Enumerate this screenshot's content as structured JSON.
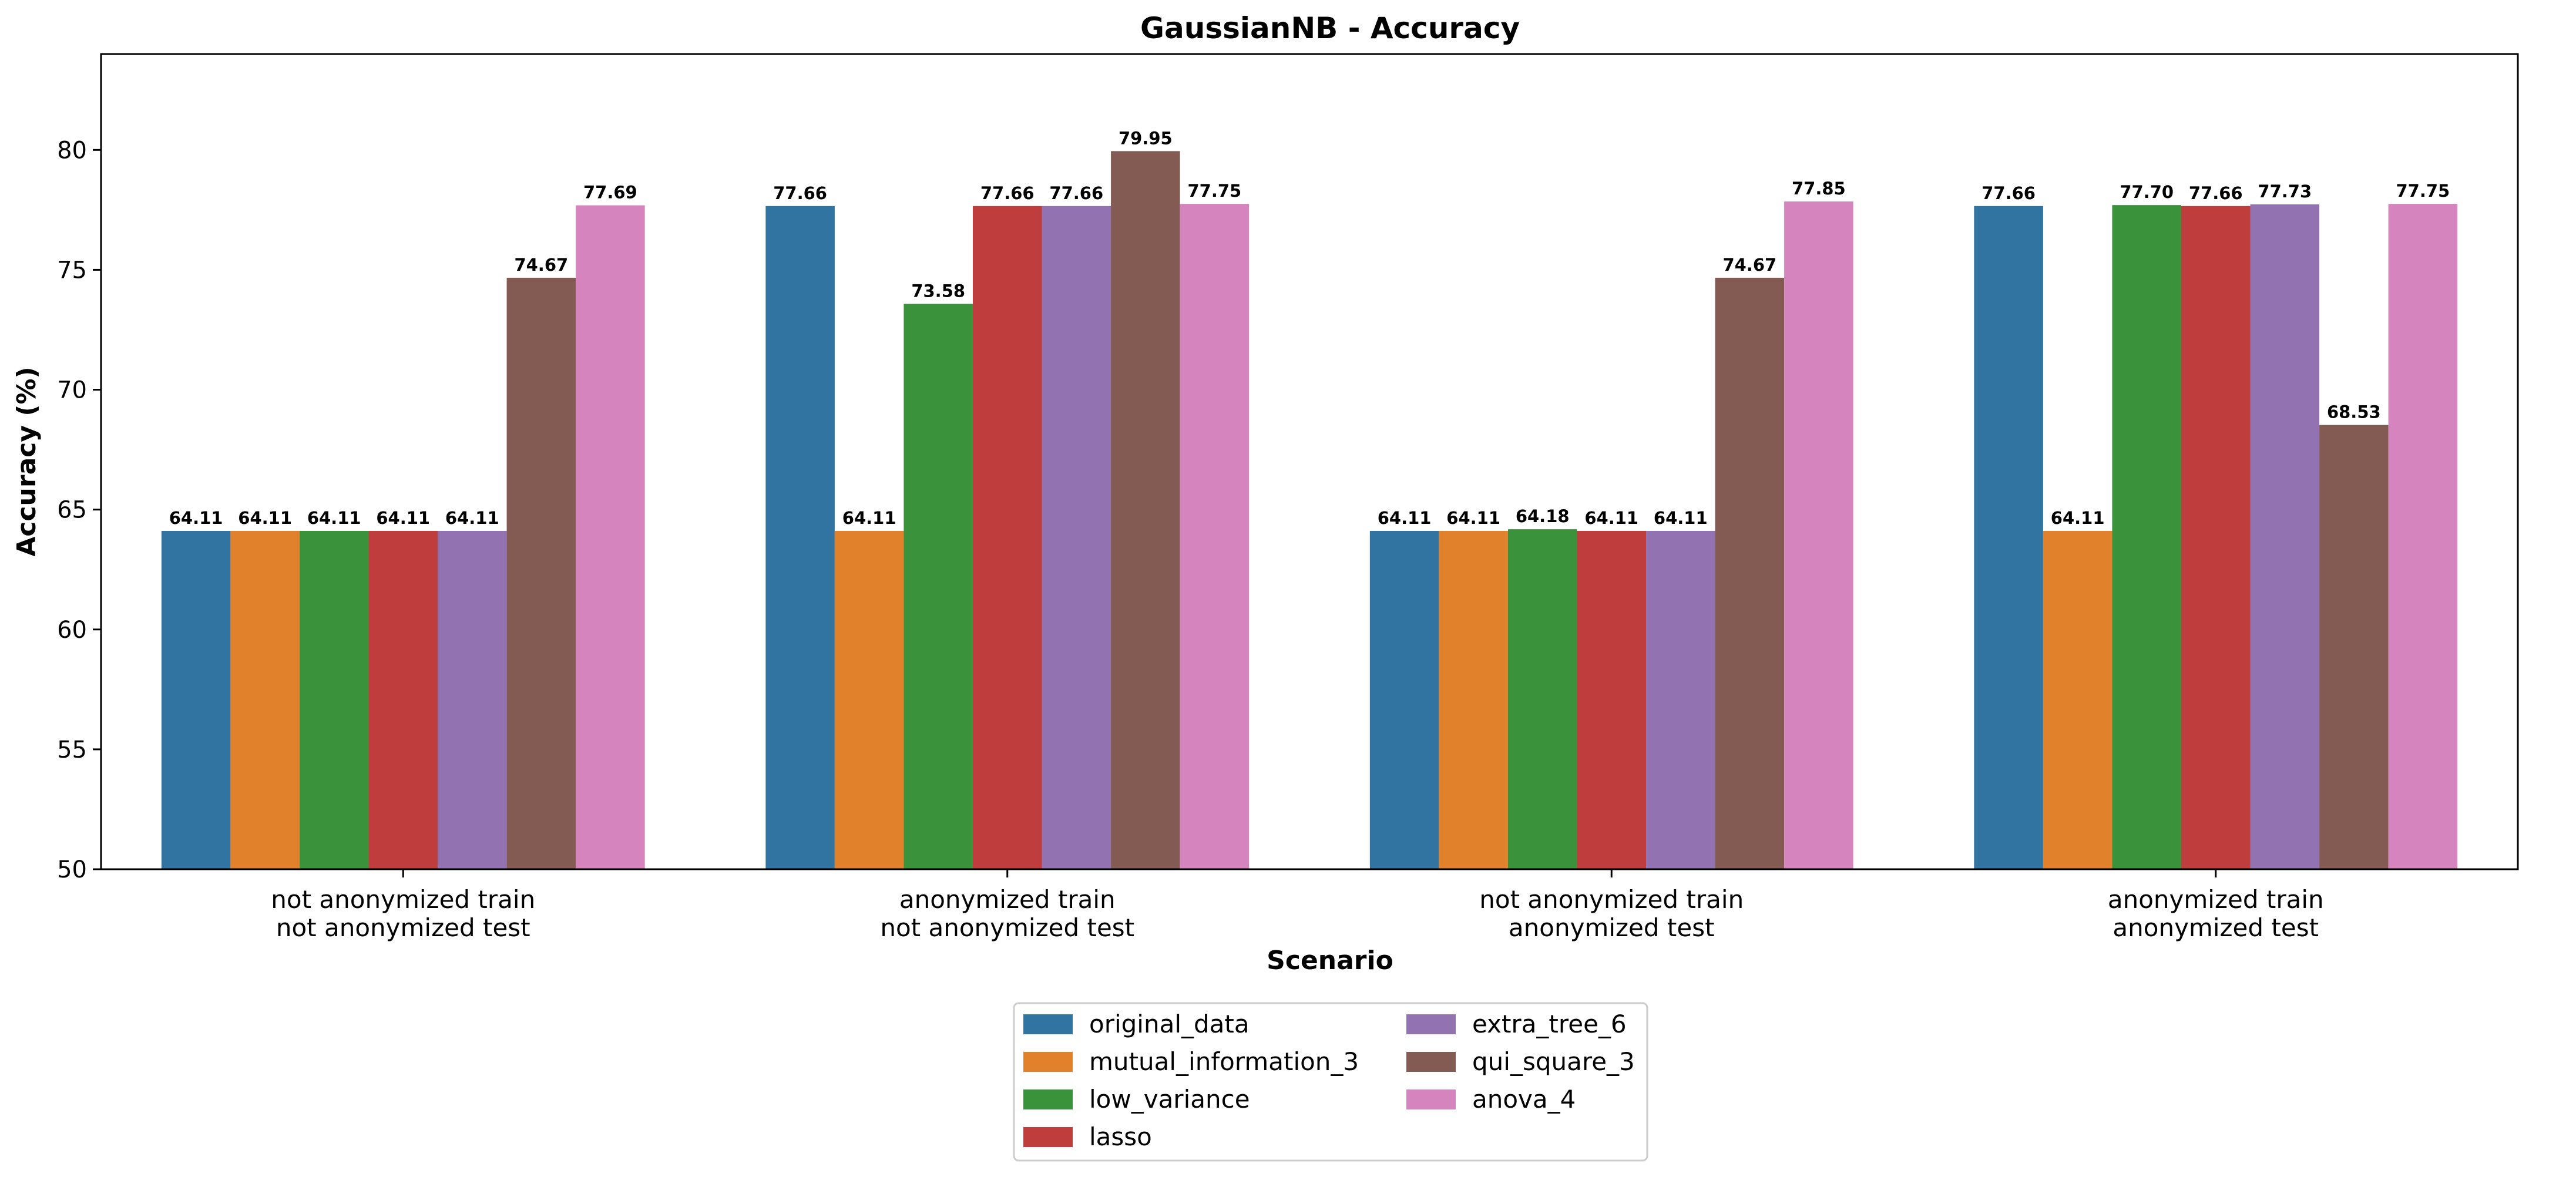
{
  "chart_data": {
    "type": "bar",
    "title": "GaussianNB - Accuracy",
    "xlabel": "Scenario",
    "ylabel": "Accuracy (%)",
    "ylim": [
      50,
      84
    ],
    "yticks": [
      "50",
      "55",
      "60",
      "65",
      "70",
      "75",
      "80"
    ],
    "grid": false,
    "legend_position": "bottom-center",
    "categories": [
      [
        "not anonymized train",
        "not anonymized test"
      ],
      [
        "anonymized train",
        "not anonymized test"
      ],
      [
        "not anonymized train",
        "anonymized test"
      ],
      [
        "anonymized train",
        "anonymized test"
      ]
    ],
    "series": [
      {
        "name": "original_data",
        "color": "#3274a1",
        "values": [
          64.11,
          77.66,
          64.11,
          77.66
        ],
        "labels": [
          "64.11",
          "77.66",
          "64.11",
          "77.66"
        ]
      },
      {
        "name": "mutual_information_3",
        "color": "#e1812c",
        "values": [
          64.11,
          64.11,
          64.11,
          64.11
        ],
        "labels": [
          "64.11",
          "64.11",
          "64.11",
          "64.11"
        ]
      },
      {
        "name": "low_variance",
        "color": "#3a923a",
        "values": [
          64.11,
          73.58,
          64.18,
          77.7
        ],
        "labels": [
          "64.11",
          "73.58",
          "64.18",
          "77.70"
        ]
      },
      {
        "name": "lasso",
        "color": "#c03d3e",
        "values": [
          64.11,
          77.66,
          64.11,
          77.66
        ],
        "labels": [
          "64.11",
          "77.66",
          "64.11",
          "77.66"
        ]
      },
      {
        "name": "extra_tree_6",
        "color": "#9372b2",
        "values": [
          64.11,
          77.66,
          64.11,
          77.73
        ],
        "labels": [
          "64.11",
          "77.66",
          "64.11",
          "77.73"
        ]
      },
      {
        "name": "qui_square_3",
        "color": "#845b53",
        "values": [
          74.67,
          79.95,
          74.67,
          68.53
        ],
        "labels": [
          "74.67",
          "79.95",
          "74.67",
          "68.53"
        ]
      },
      {
        "name": "anova_4",
        "color": "#d684bd",
        "values": [
          77.69,
          77.75,
          77.85,
          77.75
        ],
        "labels": [
          "77.69",
          "77.75",
          "77.85",
          "77.75"
        ]
      }
    ]
  }
}
